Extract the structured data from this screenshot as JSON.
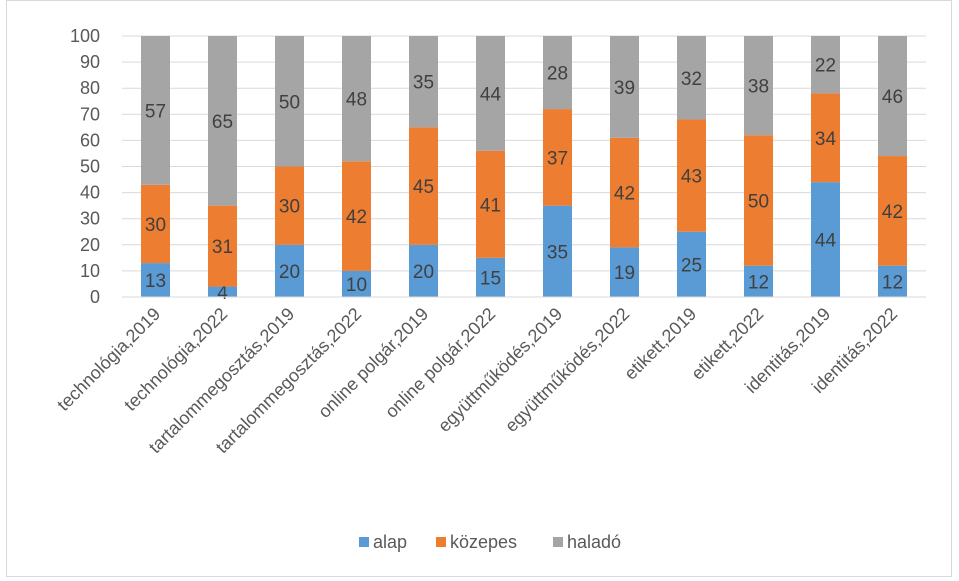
{
  "chart_data": {
    "type": "bar",
    "stacked": true,
    "categories": [
      "technológia,2019",
      "technológia,2022",
      "tartalommegosztás,2019",
      "tartalommegosztás,2022",
      "online polgár,2019",
      "online polgár,2022",
      "együttműködés,2019",
      "együttműködés,2022",
      "etikett,2019",
      "etikett,2022",
      "identitás,2019",
      "identitás,2022"
    ],
    "series": [
      {
        "name": "alap",
        "color": "#5b9bd5",
        "values": [
          13,
          4,
          20,
          10,
          20,
          15,
          35,
          19,
          25,
          12,
          44,
          12
        ]
      },
      {
        "name": "közepes",
        "color": "#ed7d31",
        "values": [
          30,
          31,
          30,
          42,
          45,
          41,
          37,
          42,
          43,
          50,
          34,
          42
        ]
      },
      {
        "name": "haladó",
        "color": "#a5a5a5",
        "values": [
          57,
          65,
          50,
          48,
          35,
          44,
          28,
          39,
          32,
          38,
          22,
          46
        ]
      }
    ],
    "ylim": [
      0,
      100
    ],
    "yticks": [
      "0",
      "10",
      "20",
      "30",
      "40",
      "50",
      "60",
      "70",
      "80",
      "90",
      "100"
    ],
    "grid": true,
    "legend": "bottom"
  }
}
